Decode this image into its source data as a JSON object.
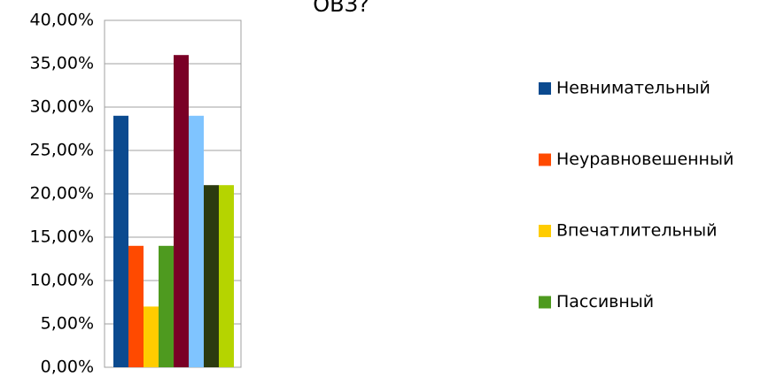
{
  "chart_data": {
    "type": "bar",
    "title": "ОВЗ?",
    "series": [
      {
        "name": "Невнимательный",
        "color": "#0b4a8f",
        "values": [
          29
        ]
      },
      {
        "name": "Неуравновешенный",
        "color": "#ff4a00",
        "values": [
          14
        ]
      },
      {
        "name": "Впечатлительный",
        "color": "#ffcc00",
        "values": [
          7
        ]
      },
      {
        "name": "Пассивный",
        "color": "#4e9a1f",
        "values": [
          14
        ]
      },
      {
        "color": "#7a0026",
        "values": [
          36
        ]
      },
      {
        "color": "#7fc4ff",
        "values": [
          29
        ]
      },
      {
        "color": "#2b3a0f",
        "values": [
          21
        ]
      },
      {
        "color": "#b5d400",
        "values": [
          21
        ]
      }
    ],
    "ylim": [
      0,
      40
    ],
    "yticks": [
      {
        "value": 0,
        "label": "0,00%"
      },
      {
        "value": 5,
        "label": "5,00%"
      },
      {
        "value": 10,
        "label": "10,00%"
      },
      {
        "value": 15,
        "label": "15,00%"
      },
      {
        "value": 20,
        "label": "20,00%"
      },
      {
        "value": 25,
        "label": "25,00%"
      },
      {
        "value": 30,
        "label": "30,00%"
      },
      {
        "value": 35,
        "label": "35,00%"
      },
      {
        "value": 40,
        "label": "40,00%"
      }
    ],
    "grid": true
  }
}
